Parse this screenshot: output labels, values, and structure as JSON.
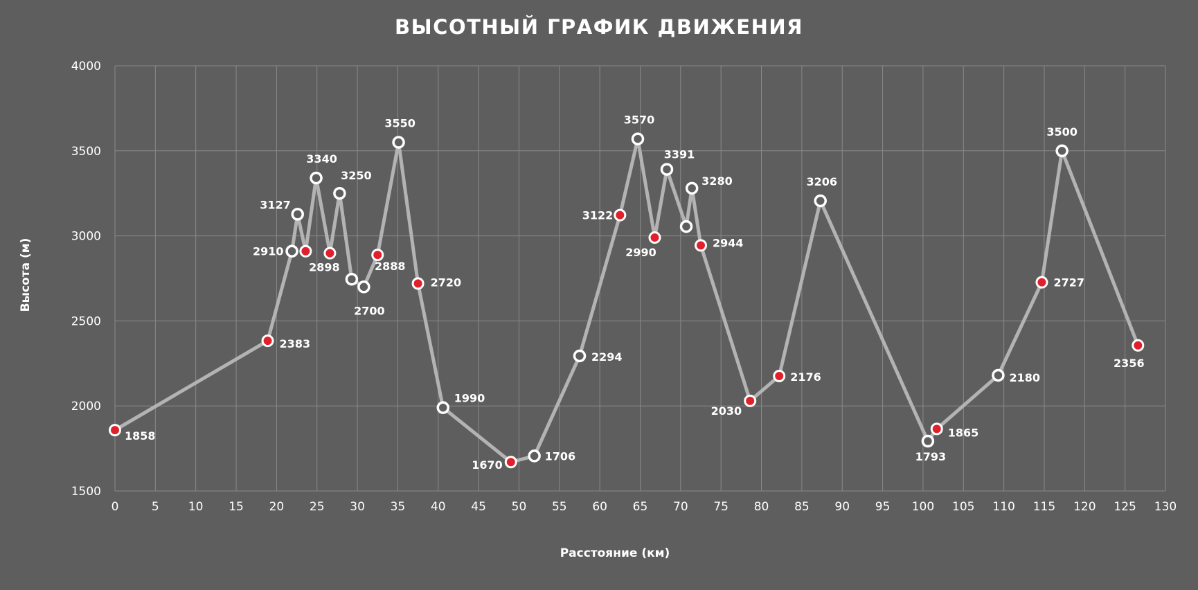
{
  "chart_data": {
    "type": "line",
    "title": "ВЫСОТНЫЙ ГРАФИК ДВИЖЕНИЯ",
    "xlabel": "Расстояние (км)",
    "ylabel": "Высота (м)",
    "xlim": [
      0,
      130
    ],
    "ylim": [
      1500,
      4000
    ],
    "x_ticks": [
      0,
      5,
      10,
      15,
      20,
      25,
      30,
      35,
      40,
      45,
      50,
      55,
      60,
      65,
      70,
      75,
      80,
      85,
      90,
      95,
      100,
      105,
      110,
      115,
      120,
      125,
      130
    ],
    "y_ticks": [
      1500,
      2000,
      2500,
      3000,
      3500,
      4000
    ],
    "grid": true,
    "legend": "none",
    "colors": {
      "background": "#5e5e5e",
      "line": "#b3b3b3",
      "marker_white_fill": "#5e5e5e",
      "marker_white_stroke": "#ffffff",
      "marker_red_fill": "#e0202a",
      "marker_red_stroke": "#ffffff"
    },
    "points": [
      {
        "x": 0,
        "y": 1858,
        "label": "1858",
        "marker": "red"
      },
      {
        "x": 18.9,
        "y": 2383,
        "label": "2383",
        "marker": "red"
      },
      {
        "x": 21.9,
        "y": 2910,
        "label": "2910",
        "marker": "white"
      },
      {
        "x": 22.6,
        "y": 3127,
        "label": "3127",
        "marker": "white"
      },
      {
        "x": 23.6,
        "y": 2910,
        "label": "",
        "marker": "red"
      },
      {
        "x": 24.9,
        "y": 3340,
        "label": "3340",
        "marker": "white"
      },
      {
        "x": 26.6,
        "y": 2898,
        "label": "2898",
        "marker": "red"
      },
      {
        "x": 27.8,
        "y": 3250,
        "label": "3250",
        "marker": "white"
      },
      {
        "x": 29.3,
        "y": 2745,
        "label": "",
        "marker": "white"
      },
      {
        "x": 30.8,
        "y": 2700,
        "label": "2700",
        "marker": "white"
      },
      {
        "x": 32.5,
        "y": 2888,
        "label": "2888",
        "marker": "red"
      },
      {
        "x": 35.1,
        "y": 3550,
        "label": "3550",
        "marker": "white"
      },
      {
        "x": 37.5,
        "y": 2720,
        "label": "2720",
        "marker": "red"
      },
      {
        "x": 40.6,
        "y": 1990,
        "label": "1990",
        "marker": "white"
      },
      {
        "x": 49.0,
        "y": 1670,
        "label": "1670",
        "marker": "red"
      },
      {
        "x": 51.9,
        "y": 1706,
        "label": "1706",
        "marker": "white"
      },
      {
        "x": 57.5,
        "y": 2294,
        "label": "2294",
        "marker": "white"
      },
      {
        "x": 62.5,
        "y": 3122,
        "label": "3122",
        "marker": "red"
      },
      {
        "x": 64.7,
        "y": 3570,
        "label": "3570",
        "marker": "white"
      },
      {
        "x": 66.8,
        "y": 2990,
        "label": "2990",
        "marker": "red"
      },
      {
        "x": 68.3,
        "y": 3391,
        "label": "3391",
        "marker": "white"
      },
      {
        "x": 70.7,
        "y": 3055,
        "label": "",
        "marker": "white"
      },
      {
        "x": 71.4,
        "y": 3280,
        "label": "3280",
        "marker": "white"
      },
      {
        "x": 72.5,
        "y": 2944,
        "label": "2944",
        "marker": "red"
      },
      {
        "x": 78.6,
        "y": 2030,
        "label": "2030",
        "marker": "red"
      },
      {
        "x": 82.2,
        "y": 2176,
        "label": "2176",
        "marker": "red"
      },
      {
        "x": 87.3,
        "y": 3206,
        "label": "3206",
        "marker": "white"
      },
      {
        "x": 100.6,
        "y": 1793,
        "label": "1793",
        "marker": "white"
      },
      {
        "x": 101.7,
        "y": 1865,
        "label": "1865",
        "marker": "red"
      },
      {
        "x": 109.3,
        "y": 2180,
        "label": "2180",
        "marker": "white"
      },
      {
        "x": 114.7,
        "y": 2727,
        "label": "2727",
        "marker": "red"
      },
      {
        "x": 117.2,
        "y": 3500,
        "label": "3500",
        "marker": "white"
      },
      {
        "x": 126.6,
        "y": 2356,
        "label": "2356",
        "marker": "red"
      }
    ]
  }
}
